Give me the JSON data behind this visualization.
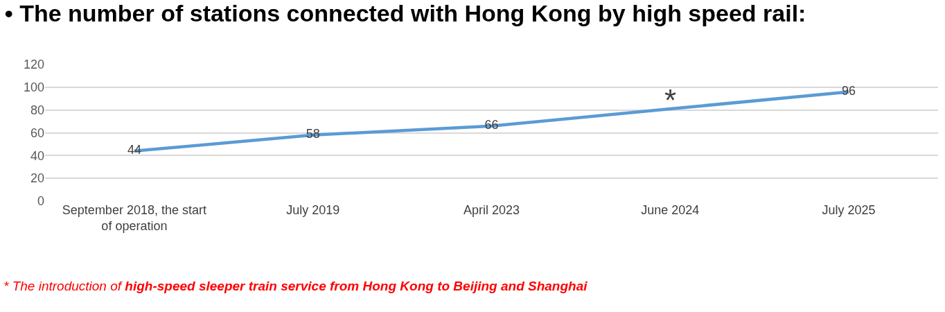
{
  "chart_data": {
    "type": "line",
    "title": "• The number of stations connected with Hong Kong by high speed rail:",
    "categories": [
      "September 2018, the start of operation",
      "July 2019",
      "April 2023",
      "June 2024",
      "July 2025"
    ],
    "values": [
      44,
      58,
      66,
      81,
      96
    ],
    "value_labels": [
      "44",
      "58",
      "66",
      null,
      "96"
    ],
    "color": "#5b9bd5",
    "marker": "none",
    "line_style": "solid",
    "ylim": [
      0,
      120
    ],
    "yticks": [
      0,
      20,
      40,
      60,
      80,
      100,
      120
    ],
    "grid": "y",
    "annotations": [
      {
        "text": "*",
        "x": "June 2024",
        "y": 81
      },
      "* The introduction of ",
      "high-speed sleeper train service from Hong Kong to Beijing and Shanghai"
    ]
  }
}
